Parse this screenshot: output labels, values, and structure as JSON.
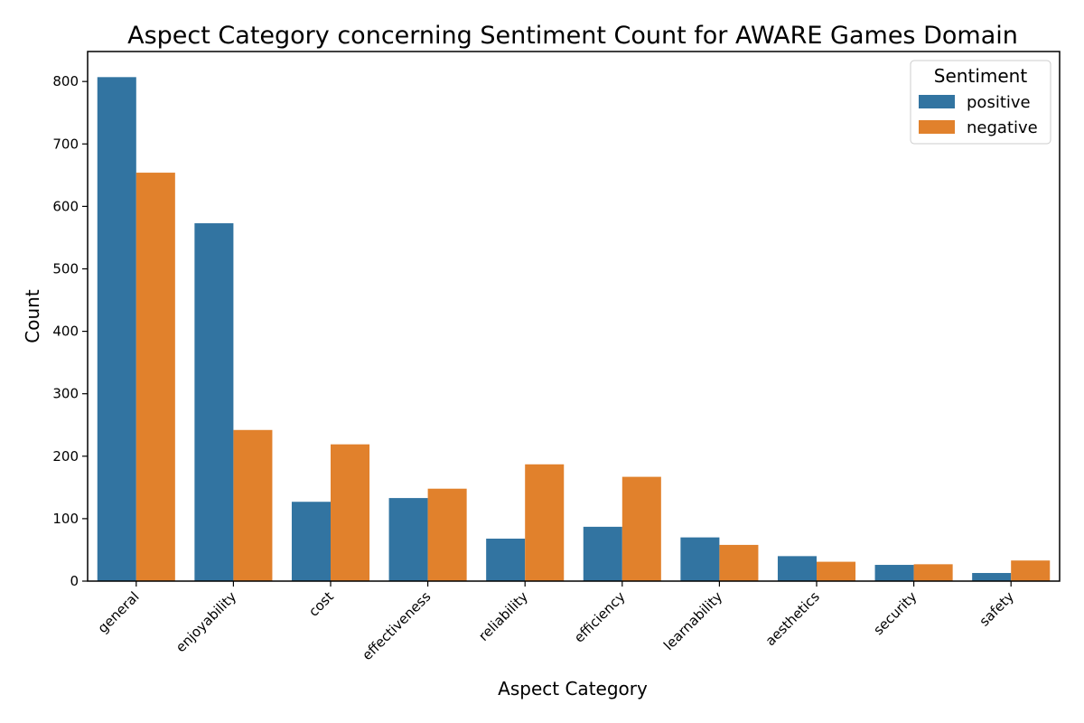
{
  "chart_data": {
    "type": "bar",
    "title": "Aspect Category concerning Sentiment Count for AWARE Games Domain",
    "xlabel": "Aspect Category",
    "ylabel": "Count",
    "ylim": [
      0,
      848
    ],
    "yticks": [
      0,
      100,
      200,
      300,
      400,
      500,
      600,
      700,
      800
    ],
    "grid": false,
    "legend": {
      "title": "Sentiment",
      "placement": "top-right"
    },
    "categories": [
      "general",
      "enjoyability",
      "cost",
      "effectiveness",
      "reliability",
      "efficiency",
      "learnability",
      "aesthetics",
      "security",
      "safety"
    ],
    "series": [
      {
        "name": "positive",
        "color": "#3274a1",
        "values": [
          807,
          573,
          127,
          133,
          68,
          87,
          70,
          40,
          26,
          13
        ]
      },
      {
        "name": "negative",
        "color": "#e1812c",
        "values": [
          654,
          242,
          219,
          148,
          187,
          167,
          58,
          31,
          27,
          33
        ]
      }
    ]
  }
}
